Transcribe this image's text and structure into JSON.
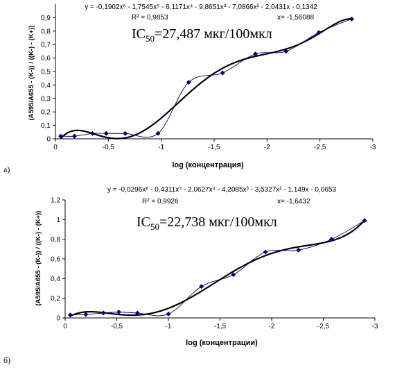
{
  "chart_data": [
    {
      "type": "scatter",
      "panel_label": "а)",
      "equation": "y = -0,1902x⁶ - 1,7545x⁵ - 6,1171x⁴ - 9,8651x³ - 7,0866x² - 2,0431x - 0,1342",
      "r_squared": "R² = 0,9853",
      "x_note": "x= -1,56088",
      "ic50": {
        "main": "IC",
        "sub": "50",
        "rest": "=27,487 мкг/100мкл"
      },
      "xlabel": "log (концентрация)",
      "ylabel": "(A595/A655 - (K-)) / ((K-) - (K+))",
      "x": [
        -0.05,
        -0.18,
        -0.35,
        -0.48,
        -0.66,
        -0.97,
        -1.26,
        -1.58,
        -1.89,
        -2.18,
        -2.49,
        -2.8
      ],
      "series": [
        {
          "name": "data",
          "color": "#000080",
          "values": [
            0.02,
            0.02,
            0.04,
            0.04,
            0.04,
            0.04,
            0.42,
            0.49,
            0.63,
            0.65,
            0.79,
            0.89
          ]
        }
      ],
      "xlim": [
        0,
        -3
      ],
      "xticks": [
        0,
        {
          "value": -0.5,
          "label": "-0,5"
        },
        -1,
        {
          "value": -1.5,
          "label": "-1,5"
        },
        -2,
        {
          "value": -2.5,
          "label": "-2,5"
        },
        -3
      ],
      "ylim": [
        0,
        1
      ],
      "yticks": [
        0,
        {
          "value": 0.1,
          "label": "0,1"
        },
        {
          "value": 0.2,
          "label": "0,2"
        },
        {
          "value": 0.3,
          "label": "0,3"
        },
        {
          "value": 0.4,
          "label": "0,4"
        },
        {
          "value": 0.5,
          "label": "0,5"
        },
        {
          "value": 0.6,
          "label": "0,6"
        },
        {
          "value": 0.7,
          "label": "0,7"
        },
        {
          "value": 0.8,
          "label": "0,8"
        },
        {
          "value": 0.9,
          "label": "0,9"
        }
      ]
    },
    {
      "type": "scatter",
      "panel_label": "б)",
      "equation": "y = -0,0296x⁶ - 0,4311x⁵ - 2,0627x⁴ - 4,2085x³ - 3,5327x² - 1,149x - 0,0653",
      "r_squared": "R² = 0,9926",
      "x_note": "x= -1,6432",
      "ic50": {
        "main": "IC",
        "sub": "50",
        "rest": "=22,738 мкг/100мкл"
      },
      "xlabel": "log (концентрации)",
      "ylabel": "(A595/A655 - (K-)) / ((K-) - (K+))",
      "x": [
        -0.05,
        -0.2,
        -0.37,
        -0.52,
        -0.7,
        -1.0,
        -1.32,
        -1.63,
        -1.94,
        -2.26,
        -2.58,
        -2.9
      ],
      "series": [
        {
          "name": "data",
          "color": "#000080",
          "values": [
            0.03,
            0.035,
            0.05,
            0.06,
            0.05,
            0.04,
            0.32,
            0.44,
            0.67,
            0.69,
            0.8,
            0.99
          ]
        }
      ],
      "xlim": [
        0,
        -3
      ],
      "xticks": [
        0,
        {
          "value": -0.5,
          "label": "-0,5"
        },
        -1,
        {
          "value": -1.5,
          "label": "-1,5"
        },
        -2,
        {
          "value": -2.5,
          "label": "-2,5"
        },
        -3
      ],
      "ylim": [
        0,
        1.2
      ],
      "yticks": [
        0,
        {
          "value": 0.2,
          "label": "0,2"
        },
        {
          "value": 0.4,
          "label": "0,4"
        },
        {
          "value": 0.6,
          "label": "0,6"
        },
        {
          "value": 0.8,
          "label": "0,8"
        },
        1,
        {
          "value": 1.2,
          "label": "1,2"
        }
      ]
    }
  ]
}
